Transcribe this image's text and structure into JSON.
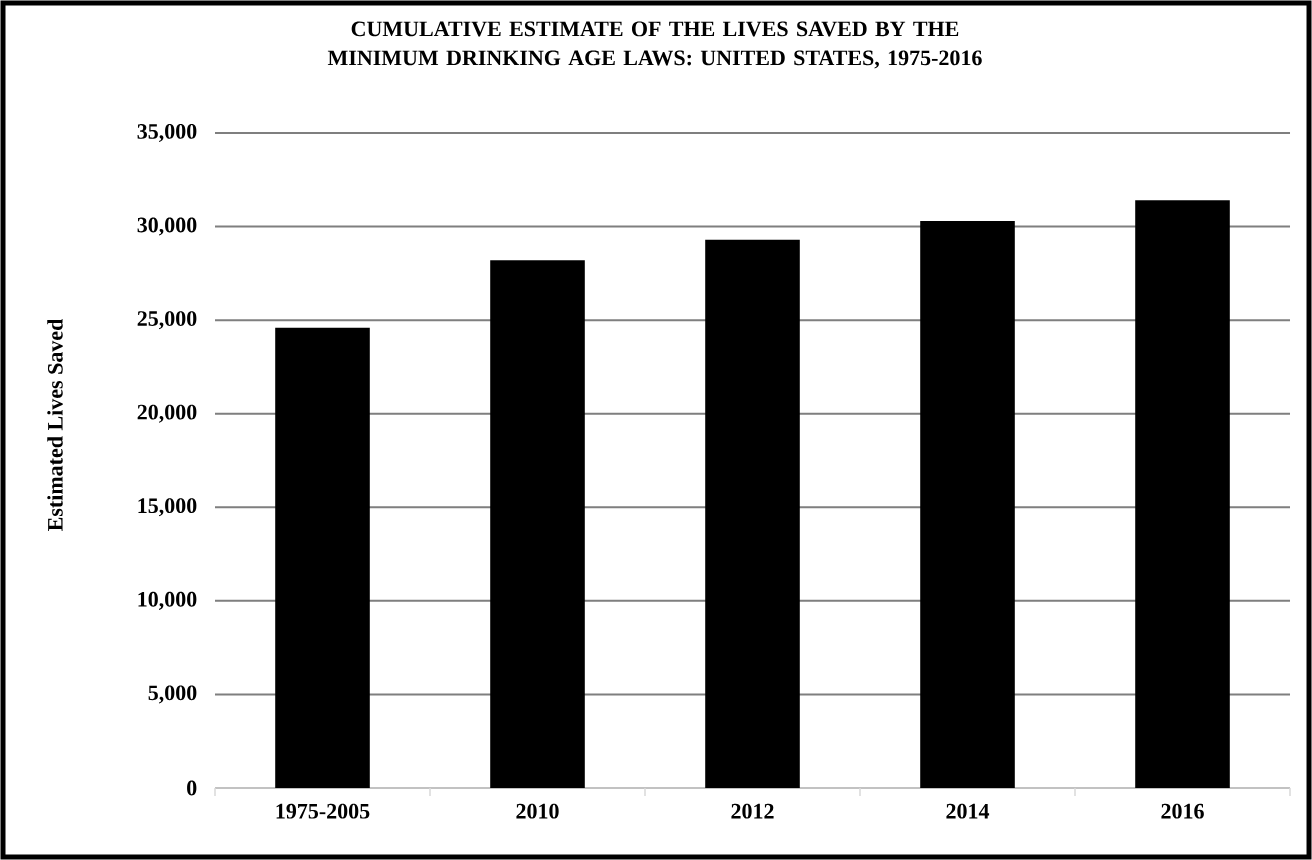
{
  "chart_data": {
    "type": "bar",
    "title": "CUMULATIVE ESTIMATE OF THE LIVES SAVED BY THE MINIMUM DRINKING AGE LAWS: UNITED STATES, 1975-2016",
    "ylabel": "Estimated Lives Saved",
    "categories": [
      "1975-2005",
      "2010",
      "2012",
      "2014",
      "2016"
    ],
    "values": [
      24600,
      28200,
      29300,
      30300,
      31400
    ],
    "color": "#000000",
    "ylim": [
      0,
      35000
    ],
    "yticks": [
      {
        "value": 0,
        "label": "0"
      },
      {
        "value": 5000,
        "label": "5,000"
      },
      {
        "value": 10000,
        "label": "10,000"
      },
      {
        "value": 15000,
        "label": "15,000"
      },
      {
        "value": 20000,
        "label": "20,000"
      },
      {
        "value": 25000,
        "label": "25,000"
      },
      {
        "value": 30000,
        "label": "30,000"
      },
      {
        "value": 35000,
        "label": "35,000"
      }
    ],
    "grid": "y"
  }
}
